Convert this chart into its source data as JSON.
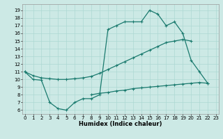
{
  "title": "",
  "xlabel": "Humidex (Indice chaleur)",
  "bg_color": "#cce9e5",
  "line_color": "#1a7a6e",
  "grid_color": "#add8d3",
  "curve1_x": [
    0,
    1,
    2,
    3,
    4,
    5,
    6,
    7,
    8,
    9,
    10,
    11,
    12,
    13,
    14,
    15,
    16,
    17,
    18,
    19,
    20,
    21,
    22
  ],
  "curve1_y": [
    11,
    10,
    9.9,
    7.0,
    6.2,
    6.0,
    7.0,
    7.5,
    7.5,
    8.0,
    16.5,
    17.0,
    17.5,
    17.5,
    17.5,
    19.0,
    18.5,
    17.0,
    17.5,
    16.0,
    12.5,
    11.0,
    9.5
  ],
  "curve2_x": [
    0,
    1,
    2,
    3,
    4,
    5,
    6,
    7,
    8,
    9,
    10,
    11,
    12,
    13,
    14,
    15,
    16,
    17,
    18,
    19,
    20
  ],
  "curve2_y": [
    11.0,
    10.5,
    10.2,
    10.1,
    10.0,
    10.0,
    10.1,
    10.2,
    10.4,
    10.8,
    11.3,
    11.8,
    12.3,
    12.8,
    13.3,
    13.8,
    14.3,
    14.8,
    15.0,
    15.2,
    15.0
  ],
  "curve3_x": [
    8,
    9,
    10,
    11,
    12,
    13,
    14,
    15,
    16,
    17,
    18,
    19,
    20,
    21,
    22
  ],
  "curve3_y": [
    8.0,
    8.2,
    8.3,
    8.5,
    8.6,
    8.8,
    8.9,
    9.0,
    9.1,
    9.2,
    9.3,
    9.4,
    9.5,
    9.6,
    9.5
  ],
  "xlim": [
    -0.3,
    23.3
  ],
  "ylim": [
    5.5,
    19.8
  ],
  "yticks": [
    6,
    7,
    8,
    9,
    10,
    11,
    12,
    13,
    14,
    15,
    16,
    17,
    18,
    19
  ],
  "xticks": [
    0,
    1,
    2,
    3,
    4,
    5,
    6,
    7,
    8,
    9,
    10,
    11,
    12,
    13,
    14,
    15,
    16,
    17,
    18,
    19,
    20,
    21,
    22,
    23
  ],
  "fontsize_xlabel": 6,
  "fontsize_tick": 5
}
